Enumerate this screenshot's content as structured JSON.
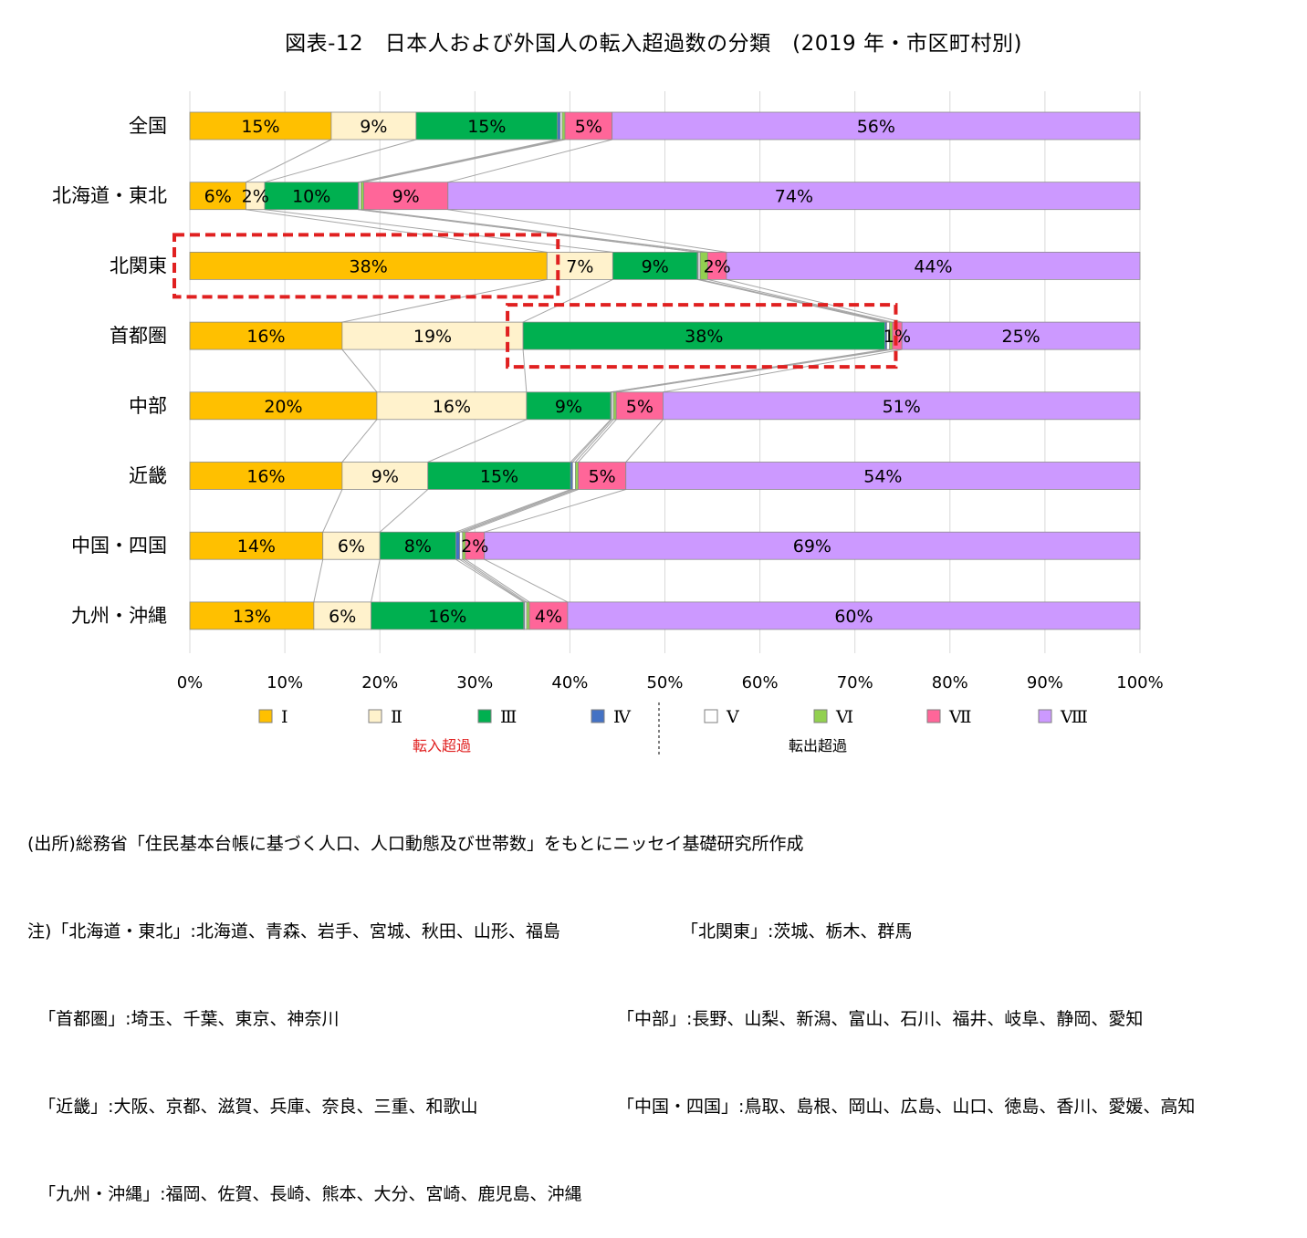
{
  "title": "図表-12　日本人および外国人の転入超過数の分類　(2019 年・市区町村別)",
  "colors": {
    "I": "#FFC000",
    "II": "#FFF2CC",
    "III": "#00B050",
    "IV": "#4472C4",
    "V": "#FFFFFF",
    "VI": "#92D050",
    "VII": "#FF6699",
    "VIII": "#CC99FF",
    "highlight": "#E02020",
    "group_in": "#E02020",
    "group_out": "#000000"
  },
  "chart_data": {
    "type": "bar",
    "orientation": "horizontal",
    "stacked": "percent",
    "title": "図表-12　日本人および外国人の転入超過数の分類　(2019 年・市区町村別)",
    "xlim": [
      0,
      100
    ],
    "x_ticks": [
      "0%",
      "10%",
      "20%",
      "30%",
      "40%",
      "50%",
      "60%",
      "70%",
      "80%",
      "90%",
      "100%"
    ],
    "grid": true,
    "categories": [
      "全国",
      "北海道・東北",
      "北関東",
      "首都圏",
      "中部",
      "近畿",
      "中国・四国",
      "九州・沖縄"
    ],
    "series": [
      {
        "name": "Ⅰ",
        "key": "I",
        "values": [
          15,
          6,
          38,
          16,
          20,
          16,
          14,
          13
        ],
        "labels": [
          "15%",
          "6%",
          "38%",
          "16%",
          "20%",
          "16%",
          "14%",
          "13%"
        ]
      },
      {
        "name": "Ⅱ",
        "key": "II",
        "values": [
          9,
          2,
          7,
          19,
          16,
          9,
          6,
          6
        ],
        "labels": [
          "9%",
          "2%",
          "7%",
          "19%",
          "16%",
          "9%",
          "6%",
          "6%"
        ]
      },
      {
        "name": "Ⅲ",
        "key": "III",
        "values": [
          15,
          10,
          9,
          38,
          9,
          15,
          8,
          16
        ],
        "labels": [
          "15%",
          "10%",
          "9%",
          "38%",
          "9%",
          "15%",
          "8%",
          "16%"
        ]
      },
      {
        "name": "Ⅳ",
        "key": "IV",
        "values": [
          0.3,
          0.1,
          0.1,
          0.2,
          0.1,
          0.2,
          0.4,
          0.1
        ],
        "labels": [
          "",
          "",
          "",
          "",
          "",
          "",
          "",
          ""
        ]
      },
      {
        "name": "Ⅴ",
        "key": "V",
        "values": [
          0.2,
          0.2,
          0.2,
          0.3,
          0.2,
          0.3,
          0.3,
          0.2
        ],
        "labels": [
          "",
          "",
          "",
          "",
          "",
          "",
          "",
          ""
        ]
      },
      {
        "name": "Ⅵ",
        "key": "VI",
        "values": [
          0.3,
          0.3,
          0.8,
          0.3,
          0.3,
          0.3,
          0.3,
          0.3
        ],
        "labels": [
          "",
          "",
          "",
          "",
          "",
          "",
          "",
          ""
        ]
      },
      {
        "name": "Ⅶ",
        "key": "VII",
        "values": [
          5,
          9,
          2,
          1,
          5,
          5,
          2,
          4
        ],
        "labels": [
          "5%",
          "9%",
          "2%",
          "1%",
          "5%",
          "5%",
          "2%",
          "4%"
        ]
      },
      {
        "name": "Ⅷ",
        "key": "VIII",
        "values": [
          56,
          74,
          44,
          25,
          51,
          54,
          69,
          60
        ],
        "labels": [
          "56%",
          "74%",
          "44%",
          "25%",
          "51%",
          "54%",
          "69%",
          "60%"
        ]
      }
    ],
    "highlights": [
      {
        "category": "北関東",
        "series": "Ⅰ"
      },
      {
        "category": "首都圏",
        "series": "Ⅲ"
      }
    ],
    "legend": {
      "placement": "bottom",
      "groups": [
        {
          "label": "転入超過",
          "series": [
            "Ⅰ",
            "Ⅱ",
            "Ⅲ",
            "Ⅳ"
          ]
        },
        {
          "label": "転出超過",
          "series": [
            "Ⅴ",
            "Ⅵ",
            "Ⅶ",
            "Ⅷ"
          ]
        }
      ]
    },
    "series_lines": true
  },
  "notes": {
    "source": "(出所)総務省「住民基本台帳に基づく人口、人口動態及び世帯数」をもとにニッセイ基礎研究所作成",
    "rows": [
      {
        "left": "注)「北海道・東北」:北海道、青森、岩手、宮城、秋田、山形、福島",
        "right": "「北関東」:茨城、栃木、群馬"
      },
      {
        "left": "  「首都圏」:埼玉、千葉、東京、神奈川",
        "right": "「中部」:長野、山梨、新潟、富山、石川、福井、岐阜、静岡、愛知"
      },
      {
        "left": "  「近畿」:大阪、京都、滋賀、兵庫、奈良、三重、和歌山",
        "right": "「中国・四国」:鳥取、島根、岡山、広島、山口、徳島、香川、愛媛、高知"
      },
      {
        "left": "  「九州・沖縄」:福岡、佐賀、長崎、熊本、大分、宮崎、鹿児島、沖縄",
        "right": ""
      }
    ]
  }
}
